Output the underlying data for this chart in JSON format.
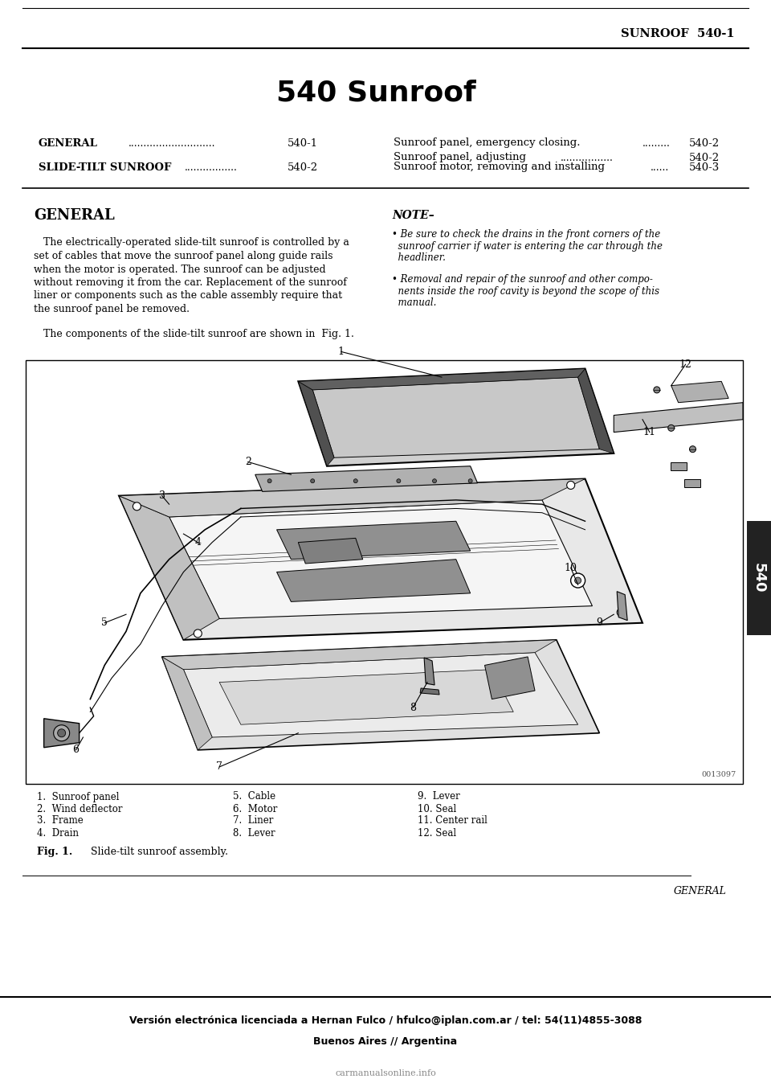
{
  "page_title": "540 Sunroof",
  "header_right": "SUNROOF  540-1",
  "bg_color": "#ffffff",
  "section_title": "GENERAL",
  "note_title": "NOTE–",
  "body_lines": [
    "   The electrically-operated slide-tilt sunroof is controlled by a",
    "set of cables that move the sunroof panel along guide rails",
    "when the motor is operated. The sunroof can be adjusted",
    "without removing it from the car. Replacement of the sunroof",
    "liner or components such as the cable assembly require that",
    "the sunroof panel be removed."
  ],
  "body_text2": "   The components of the slide-tilt sunroof are shown in  Fig. 1.",
  "note_bullet1": [
    "• Be sure to check the drains in the front corners of the",
    "  sunroof carrier if water is entering the car through the",
    "  headliner."
  ],
  "note_bullet2": [
    "• Removal and repair of the sunroof and other compo-",
    "  nents inside the roof cavity is beyond the scope of this",
    "  manual."
  ],
  "toc_entry1_label": "GENERAL",
  "toc_entry1_dots": "............................",
  "toc_entry1_page": "540-1",
  "toc_entry2_label": "SLIDE-TILT SUNROOF",
  "toc_entry2_dots": ".................",
  "toc_entry2_page": "540-2",
  "toc_right1": "Sunroof panel, emergency closing.",
  "toc_right1_dots": ".........",
  "toc_right1_page": "540-2",
  "toc_right2": "Sunroof panel, adjusting",
  "toc_right2_dots": ".................",
  "toc_right2_page": "540-2",
  "toc_right3": "Sunroof motor, removing and installing",
  "toc_right3_dots": "......",
  "toc_right3_page": "540-3",
  "fig_label_col1": [
    "1.  Sunroof panel",
    "2.  Wind deflector",
    "3.  Frame",
    "4.  Drain"
  ],
  "fig_label_col2": [
    "5.  Cable",
    "6.  Motor",
    "7.  Liner",
    "8.  Lever"
  ],
  "fig_label_col3": [
    "9.  Lever",
    "10. Seal",
    "11. Center rail",
    "12. Seal"
  ],
  "fig_code": "0013097",
  "fig_caption_bold": "Fig. 1.",
  "fig_caption_text": "  Slide-tilt sunroof assembly.",
  "footer_left": "Versión electrónica licenciada a Hernan Fulco / hfulco@iplan.com.ar / tel: 54(11)4855-3088",
  "footer_center": "Buenos Aires // Argentina",
  "footer_watermark": "carmanualsonline.info",
  "general_footer": "GENERAL",
  "tab_number": "540"
}
